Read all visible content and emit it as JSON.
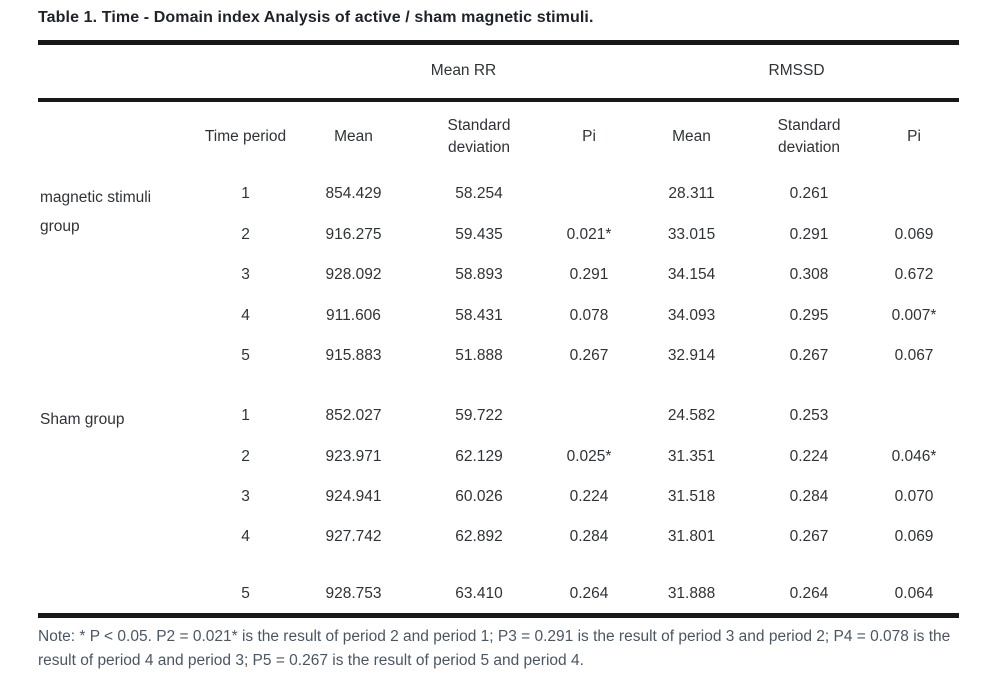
{
  "title": "Table 1. Time - Domain index Analysis of active / sham magnetic stimuli.",
  "table": {
    "group_headers": [
      "Mean RR",
      "RMSSD"
    ],
    "col_headers": [
      "Time period",
      "Mean",
      "Standard deviation",
      "Pi",
      "Mean",
      "Standard deviation",
      "Pi"
    ],
    "groups": [
      {
        "label": "magnetic stimuli group",
        "rows": [
          [
            "1",
            "854.429",
            "58.254",
            "",
            "28.311",
            "0.261",
            ""
          ],
          [
            "2",
            "916.275",
            "59.435",
            "0.021*",
            "33.015",
            "0.291",
            "0.069"
          ],
          [
            "3",
            "928.092",
            "58.893",
            "0.291",
            "34.154",
            "0.308",
            "0.672"
          ],
          [
            "4",
            "911.606",
            "58.431",
            "0.078",
            "34.093",
            "0.295",
            "0.007*"
          ],
          [
            "5",
            "915.883",
            "51.888",
            "0.267",
            "32.914",
            "0.267",
            "0.067"
          ]
        ]
      },
      {
        "label": "Sham group",
        "rows": [
          [
            "1",
            "852.027",
            "59.722",
            "",
            "24.582",
            "0.253",
            ""
          ],
          [
            "2",
            "923.971",
            "62.129",
            "0.025*",
            "31.351",
            "0.224",
            "0.046*"
          ],
          [
            "3",
            "924.941",
            "60.026",
            "0.224",
            "31.518",
            "0.284",
            "0.070"
          ],
          [
            "4",
            "927.742",
            "62.892",
            "0.284",
            "31.801",
            "0.267",
            "0.069"
          ],
          [
            "5",
            "928.753",
            "63.410",
            "0.264",
            "31.888",
            "0.264",
            "0.064"
          ]
        ]
      }
    ]
  },
  "note": "Note: * P < 0.05. P2 = 0.021* is the result of period 2 and period 1; P3 = 0.291 is the result of period 3 and period 2; P4 = 0.078 is the result of period 4 and period 3; P5 = 0.267 is the result of period 5 and period 4."
}
